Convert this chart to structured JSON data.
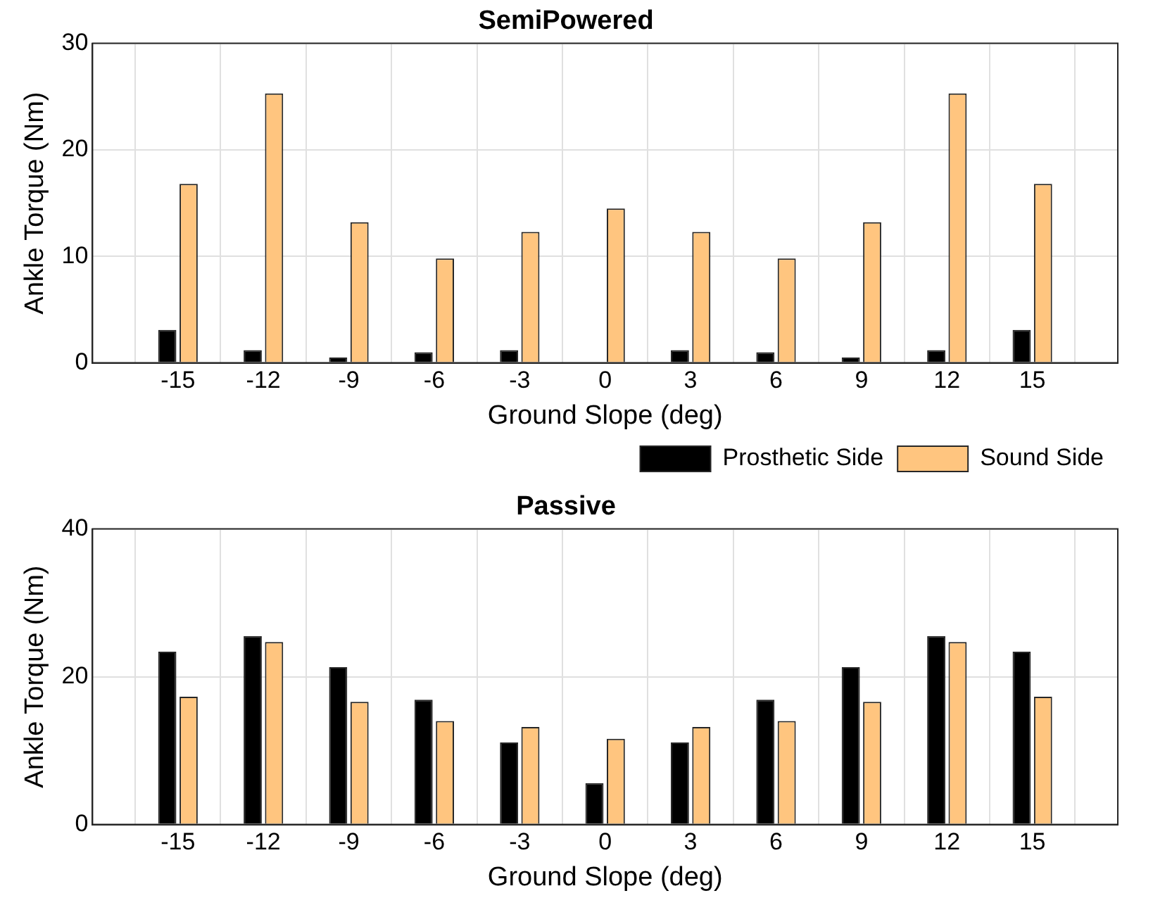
{
  "chart_data": [
    {
      "type": "bar",
      "title": "SemiPowered",
      "xlabel": "Ground Slope (deg)",
      "ylabel": "Ankle Torque (Nm)",
      "x": [
        -15,
        -12,
        -9,
        -6,
        -3,
        0,
        3,
        6,
        9,
        12,
        15
      ],
      "xlim": [
        -18,
        18
      ],
      "xticks": [
        -15,
        -12,
        -9,
        -6,
        -3,
        0,
        3,
        6,
        9,
        12,
        15
      ],
      "ylim": [
        0,
        30
      ],
      "yticks": [
        0,
        10,
        20,
        30
      ],
      "grid": true,
      "legend": "bottom right",
      "series": [
        {
          "name": "Prosthetic Side",
          "color": "#000000",
          "values": [
            3.1,
            1.2,
            0.5,
            1.0,
            1.2,
            0,
            1.2,
            1.0,
            0.5,
            1.2,
            3.1
          ]
        },
        {
          "name": "Sound Side",
          "color": "#ffc57f",
          "values": [
            16.8,
            25.3,
            13.2,
            9.8,
            12.3,
            14.5,
            12.3,
            9.8,
            13.2,
            25.3,
            16.8
          ]
        }
      ]
    },
    {
      "type": "bar",
      "title": "Passive",
      "xlabel": "Ground Slope (deg)",
      "ylabel": "Ankle Torque (Nm)",
      "x": [
        -15,
        -12,
        -9,
        -6,
        -3,
        0,
        3,
        6,
        9,
        12,
        15
      ],
      "xlim": [
        -18,
        18
      ],
      "xticks": [
        -15,
        -12,
        -9,
        -6,
        -3,
        0,
        3,
        6,
        9,
        12,
        15
      ],
      "ylim": [
        0,
        40
      ],
      "yticks": [
        0,
        20,
        40
      ],
      "grid": true,
      "series": [
        {
          "color": "#000000",
          "values": [
            23.4,
            25.5,
            21.3,
            16.9,
            11.1,
            5.6,
            11.1,
            16.9,
            21.3,
            25.5,
            23.4
          ]
        },
        {
          "color": "#ffc57f",
          "values": [
            17.3,
            24.7,
            16.6,
            14.0,
            13.2,
            11.6,
            13.2,
            14.0,
            16.6,
            24.7,
            17.3
          ]
        }
      ]
    }
  ]
}
